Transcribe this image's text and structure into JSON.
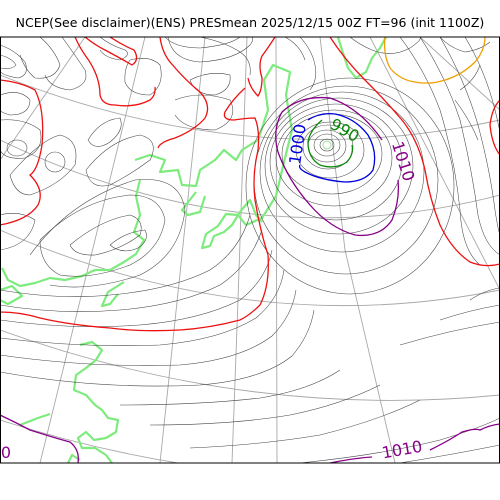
{
  "title": "NCEP(See disclaimer)(ENS) PRESmean 2025/12/15 00Z FT=96 (init 1100Z)",
  "contour_labels": {
    "c990": "990",
    "c1000": "1000",
    "c1010_upper": "1010",
    "c1010_lower": "1010",
    "c1010_left": "0"
  },
  "colors": {
    "isobar": "#444444",
    "graticule": "#a8a8a8",
    "coast": "#7deb7d",
    "red": "#ee1111",
    "purple": "#880088",
    "blue": "#0000dd",
    "green": "#0a8a0a",
    "orange": "#f0a000"
  }
}
